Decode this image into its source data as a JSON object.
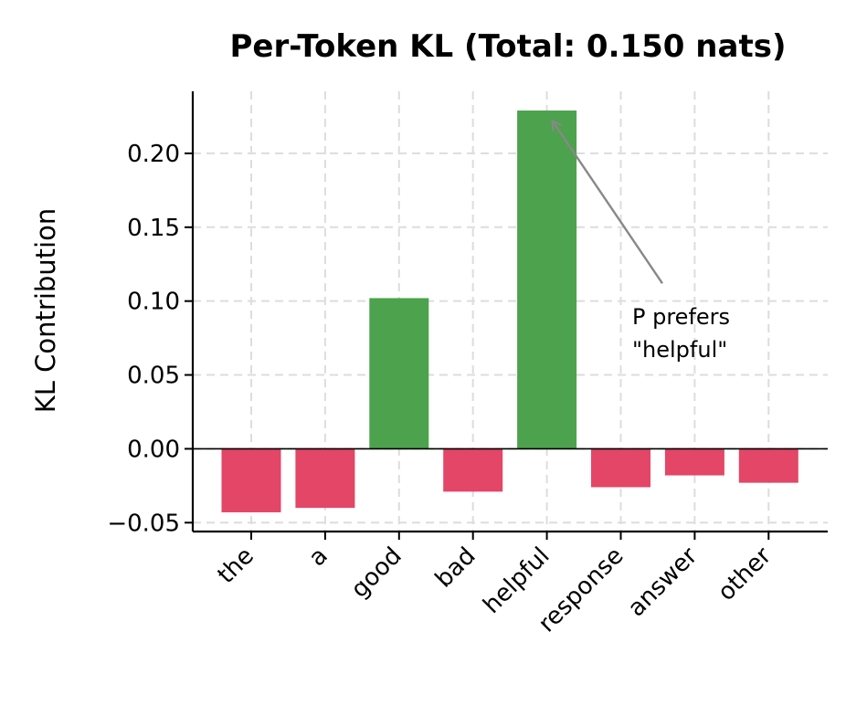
{
  "chart_data": {
    "type": "bar",
    "title": "Per-Token KL (Total: 0.150 nats)",
    "xlabel": "",
    "ylabel": "KL Contribution",
    "categories": [
      "the",
      "a",
      "good",
      "bad",
      "helpful",
      "response",
      "answer",
      "other"
    ],
    "values": [
      -0.043,
      -0.04,
      0.102,
      -0.029,
      0.229,
      -0.026,
      -0.018,
      -0.023
    ],
    "ylim": [
      -0.056,
      0.242
    ],
    "yticks": [
      -0.05,
      0.0,
      0.05,
      0.1,
      0.15,
      0.2
    ],
    "ytick_labels": [
      "−0.05",
      "0.00",
      "0.05",
      "0.10",
      "0.15",
      "0.20"
    ],
    "grid": true,
    "colors": {
      "positive": "#4da24d",
      "negative": "#e34666",
      "annotation_arrow": "#888888"
    },
    "annotation": {
      "lines": [
        "P prefers",
        "\"helpful\""
      ],
      "target_category": "helpful",
      "target_value": 0.222,
      "text_anchor_value": 0.112
    }
  }
}
